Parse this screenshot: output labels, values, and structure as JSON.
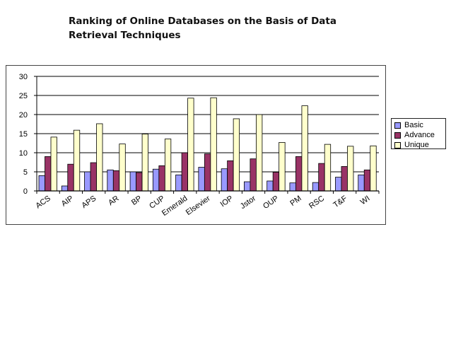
{
  "title": {
    "line1": "Ranking of Online Databases on the Basis of Data",
    "line2": "Retrieval Techniques"
  },
  "colors": {
    "basic": "#9999ff",
    "advance": "#993366",
    "unique": "#ffffcc"
  },
  "chart_data": {
    "type": "bar",
    "title": "Ranking of Online Databases on the Basis of Data Retrieval Techniques",
    "categories": [
      "ACS",
      "AIP",
      "APS",
      "AR",
      "BP",
      "CUP",
      "Emerald",
      "Elsevier",
      "IOP",
      "Jstor",
      "OUP",
      "PM",
      "RSC",
      "T&F",
      "WI"
    ],
    "series": [
      {
        "name": "Basic",
        "values": [
          4.0,
          1.3,
          5.0,
          5.5,
          5.0,
          5.7,
          4.2,
          6.2,
          5.8,
          2.4,
          2.6,
          2.1,
          2.2,
          3.6,
          4.2
        ]
      },
      {
        "name": "Advance",
        "values": [
          9.0,
          7.0,
          7.4,
          5.3,
          4.8,
          6.6,
          10.0,
          9.7,
          7.9,
          8.4,
          4.9,
          9.0,
          7.2,
          6.4,
          5.5
        ]
      },
      {
        "name": "Unique",
        "values": [
          14.1,
          15.9,
          17.6,
          12.3,
          14.9,
          13.6,
          24.3,
          24.4,
          18.9,
          20.0,
          12.7,
          22.3,
          12.2,
          11.7,
          11.8
        ]
      }
    ],
    "ylim": [
      0,
      30
    ],
    "yticks": [
      "0",
      "5",
      "10",
      "15",
      "20",
      "25",
      "30"
    ],
    "grid": true,
    "legend_position": "right",
    "xlabel": "",
    "ylabel": ""
  }
}
